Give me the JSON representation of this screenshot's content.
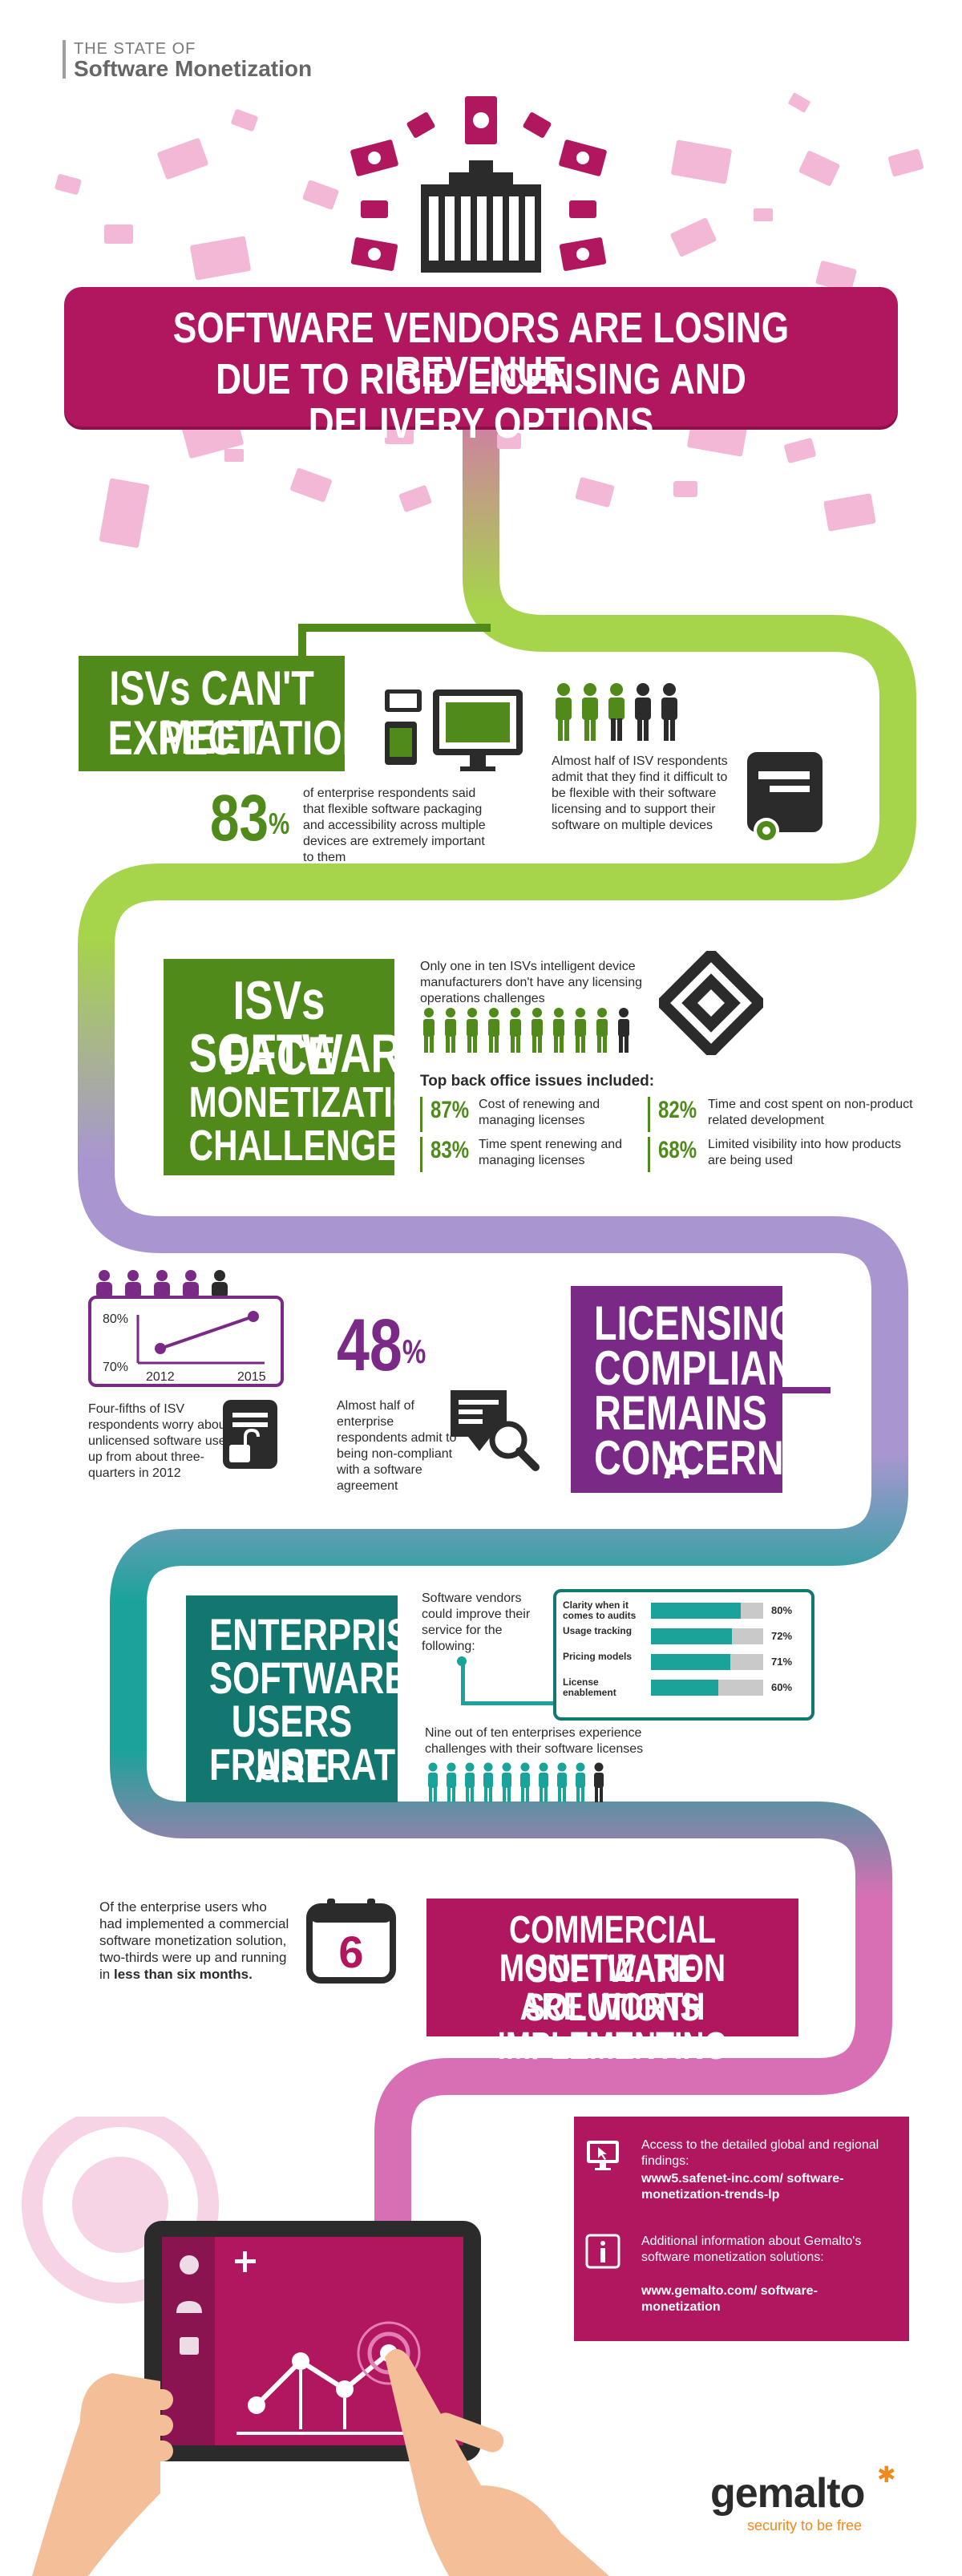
{
  "header": {
    "kicker": "THE STATE OF",
    "title": "Software Monetization"
  },
  "colors": {
    "magenta": "#b0175f",
    "green": "#4f8a1a",
    "lime": "#a6d44a",
    "purple": "#7a2a86",
    "lavender": "#a996d0",
    "teal": "#11776f",
    "teal_light": "#1aa39a",
    "pink": "#d86fb4"
  },
  "hero": {
    "headline_line1": "SOFTWARE VENDORS ARE LOSING REVENUE",
    "headline_line2": "DUE TO RIGID LICENSING AND DELIVERY OPTIONS"
  },
  "section1": {
    "title_line1": "ISVs CAN'T MEET",
    "title_line2": "EXPECTATIONS",
    "stat_value": "83",
    "stat_unit": "%",
    "stat_text": "of enterprise respondents said that flexible software packaging and accessibility across multiple devices are extremely important to them",
    "half_text": "Almost half of ISV respondents admit that they find it difficult to be flexible with their software licensing and to support their software on multiple devices"
  },
  "section2": {
    "title_line1": "ISVs FACE",
    "title_line2": "SOFTWARE",
    "title_line3": "MONETIZATION",
    "title_line4": "CHALLENGES",
    "one_in_ten": "Only one in ten ISVs intelligent device manufacturers don't have any licensing operations challenges",
    "issues_heading": "Top back office issues included:",
    "issues": [
      {
        "value": "87%",
        "text": "Cost of renewing and managing licenses"
      },
      {
        "value": "83%",
        "text": "Time spent renewing and managing licenses"
      },
      {
        "value": "82%",
        "text": "Time and cost spent on non-product related development"
      },
      {
        "value": "68%",
        "text": "Limited visibility into how products are being used"
      }
    ]
  },
  "section3": {
    "title_line1": "LICENSING",
    "title_line2": "COMPLIANCE",
    "title_line3": "REMAINS A",
    "title_line4": "CONCERN",
    "chart_y_top": "80%",
    "chart_y_bottom": "70%",
    "chart_x_left": "2012",
    "chart_x_right": "2015",
    "four_fifths_text": "Four-fifths of ISV respondents worry about unlicensed software use, up from about three-quarters in 2012",
    "stat_value": "48",
    "stat_unit": "%",
    "stat_text": "Almost half of enterprise respondents admit to being non-compliant with a software agreement"
  },
  "section4": {
    "title_line1": "ENTERPRISE",
    "title_line2": "SOFTWARE",
    "title_line3": "USERS ARE",
    "title_line4": "FRUSTRATED",
    "improve_text": "Software vendors could improve their service for the following:",
    "bars": [
      {
        "label": "Clarity when it comes to audits",
        "value": 80,
        "value_label": "80%"
      },
      {
        "label": "Usage tracking",
        "value": 72,
        "value_label": "72%"
      },
      {
        "label": "Pricing models",
        "value": 71,
        "value_label": "71%"
      },
      {
        "label": "License enablement",
        "value": 60,
        "value_label": "60%"
      }
    ],
    "nine_of_ten": "Nine out of ten enterprises experience challenges with their software licenses"
  },
  "section5": {
    "title_line1": "COMMERCIAL SOFTWARE",
    "title_line2": "MONETIZATION SOLUTIONS",
    "title_line3": "ARE WORTH IMPLEMENTING",
    "calendar_number": "6",
    "text_part1": "Of the enterprise users who had implemented a commercial software monetization solution, two-thirds were up and running in ",
    "text_bold": "less than six months."
  },
  "footer_box": {
    "access_text": "Access to the detailed global and regional findings:",
    "access_link": "www5.safenet-inc.com/ software-monetization-trends-lp",
    "info_text": "Additional information about Gemalto's software monetization solutions:",
    "info_link": "www.gemalto.com/ software-monetization"
  },
  "brand": {
    "name": "gemalto",
    "tagline": "security to be free"
  }
}
